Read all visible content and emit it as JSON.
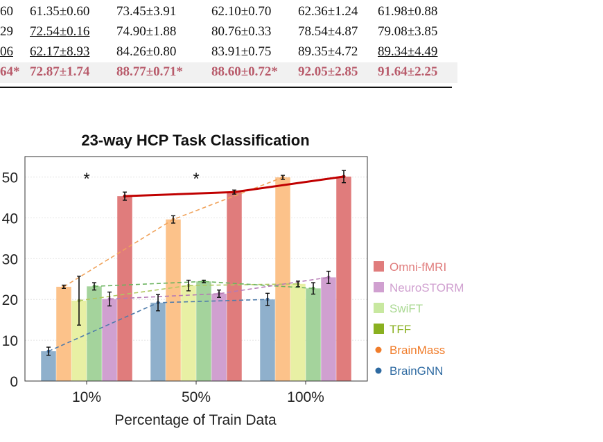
{
  "table": {
    "rows": [
      {
        "cells": [
          "60",
          "61.35±0.60",
          "73.45±3.91",
          "62.10±0.70",
          "62.36±1.24",
          "61.98±0.88"
        ],
        "highlight": false
      },
      {
        "cells": [
          "29",
          "72.54±0.16",
          "74.90±1.88",
          "80.76±0.33",
          "78.54±4.87",
          "79.08±3.85"
        ],
        "highlight": false
      },
      {
        "cells": [
          "06",
          "62.17±8.93",
          "84.26±0.80",
          "83.91±0.75",
          "89.35±4.72",
          "89.34±4.49"
        ],
        "highlight": false
      },
      {
        "cells": [
          "64*",
          "72.87±1.74",
          "88.77±0.71*",
          "88.60±0.72*",
          "92.05±2.85",
          "91.64±2.25"
        ],
        "highlight": true
      }
    ],
    "underlined": [
      [
        1,
        1
      ],
      [
        2,
        0
      ],
      [
        2,
        1
      ],
      [
        2,
        5
      ]
    ]
  },
  "chart_data": {
    "type": "bar",
    "title": "23-way HCP Task Classification",
    "xlabel": "Percentage of Train Data",
    "ylabel": "",
    "categories": [
      "10%",
      "50%",
      "100%"
    ],
    "ylim": [
      0,
      55
    ],
    "yticks": [
      "0",
      "10",
      "20",
      "30",
      "40",
      "50"
    ],
    "grid": true,
    "legend_position": "right",
    "significance_marks": [
      "*",
      "*",
      ""
    ],
    "series": [
      {
        "name": "BrainGNN",
        "color": "#8fb0cc",
        "line_color": "#4f7cab",
        "values": [
          7.3,
          19.2,
          20.0
        ],
        "errors": [
          1.0,
          2.0,
          1.5
        ]
      },
      {
        "name": "BrainMass",
        "color": "#fcc28a",
        "line_color": "#f0a35c",
        "values": [
          23.1,
          39.6,
          49.9
        ],
        "errors": [
          0.4,
          0.9,
          0.5
        ]
      },
      {
        "name": "SwiFT",
        "color": "#e8f0a4",
        "line_color": "#b0c860",
        "values": [
          19.7,
          23.4,
          23.8
        ],
        "errors": [
          6.0,
          1.3,
          0.7
        ]
      },
      {
        "name": "TFF",
        "color": "#a4d39c",
        "line_color": "#6bb35f",
        "values": [
          23.2,
          24.4,
          22.7
        ],
        "errors": [
          0.9,
          0.3,
          1.4
        ]
      },
      {
        "name": "NeuroSTORM",
        "color": "#d0a0d0",
        "line_color": "#b57ab5",
        "values": [
          20.1,
          21.4,
          25.4
        ],
        "errors": [
          1.7,
          0.9,
          1.5
        ]
      },
      {
        "name": "Omni-fMRI",
        "color": "#e07c7c",
        "line_color": "#c00000",
        "values": [
          45.3,
          46.3,
          50.1
        ],
        "errors": [
          1.0,
          0.5,
          1.5
        ]
      }
    ],
    "legend": [
      {
        "label": "Omni-fMRI",
        "marker": "square",
        "color": "#e07c7c",
        "text_color": "#e07c7c"
      },
      {
        "label": "NeuroSTORM",
        "marker": "square",
        "color": "#d0a0d0",
        "text_color": "#d0a0d0"
      },
      {
        "label": "SwiFT",
        "marker": "square",
        "color": "#c8e8a0",
        "text_color": "#a8d890"
      },
      {
        "label": "TFF",
        "marker": "square",
        "color": "#8ab020",
        "text_color": "#8ab020"
      },
      {
        "label": "BrainMass",
        "marker": "dot",
        "color": "#f07c2a",
        "text_color": "#f07c2a"
      },
      {
        "label": "BrainGNN",
        "marker": "dot",
        "color": "#2e6aa1",
        "text_color": "#2e6aa1"
      }
    ]
  }
}
